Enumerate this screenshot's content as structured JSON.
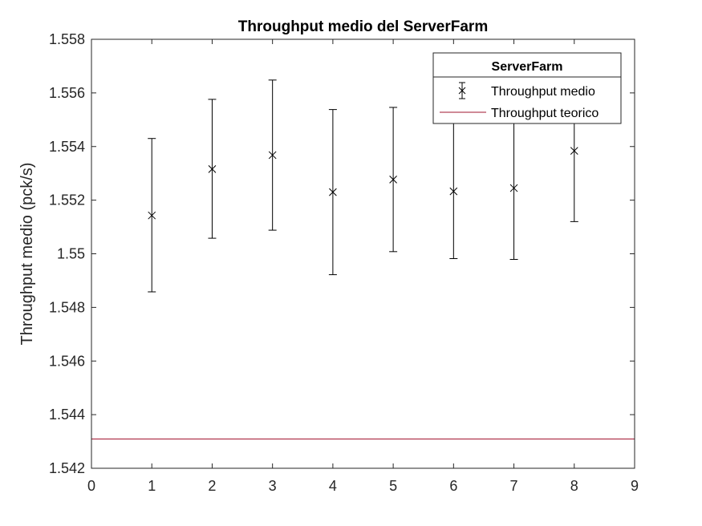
{
  "chart_data": {
    "type": "scatter",
    "title": "Throughput medio del ServerFarm",
    "xlabel": "",
    "ylabel": "Throughput medio (pck/s)",
    "xlim": [
      0,
      9
    ],
    "ylim": [
      1.542,
      1.558
    ],
    "xticks": [
      "0",
      "1",
      "2",
      "3",
      "4",
      "5",
      "6",
      "7",
      "8",
      "9"
    ],
    "yticks": [
      "1.542",
      "1.544",
      "1.546",
      "1.548",
      "1.55",
      "1.552",
      "1.554",
      "1.556",
      "1.558"
    ],
    "grid": false,
    "legend": {
      "title": "ServerFarm",
      "placement": "top-right",
      "entries": [
        "Throughput medio",
        "Throughput teorico"
      ]
    },
    "series": [
      {
        "name": "Throughput medio",
        "kind": "errorbar",
        "marker": "x",
        "color": "#000000",
        "x": [
          1,
          2,
          3,
          4,
          5,
          6,
          7,
          8
        ],
        "y": [
          1.55143,
          1.55316,
          1.55368,
          1.5523,
          1.55277,
          1.55233,
          1.55245,
          1.55384
        ],
        "lower": [
          1.54858,
          1.55058,
          1.55088,
          1.54922,
          1.55008,
          1.54982,
          1.54979,
          1.5512
        ],
        "upper": [
          1.5543,
          1.55576,
          1.55648,
          1.55538,
          1.55546,
          1.55486,
          1.5551,
          1.5565
        ]
      },
      {
        "name": "Throughput teorico",
        "kind": "hline",
        "color": "#a2142f",
        "y": 1.54309
      }
    ]
  }
}
